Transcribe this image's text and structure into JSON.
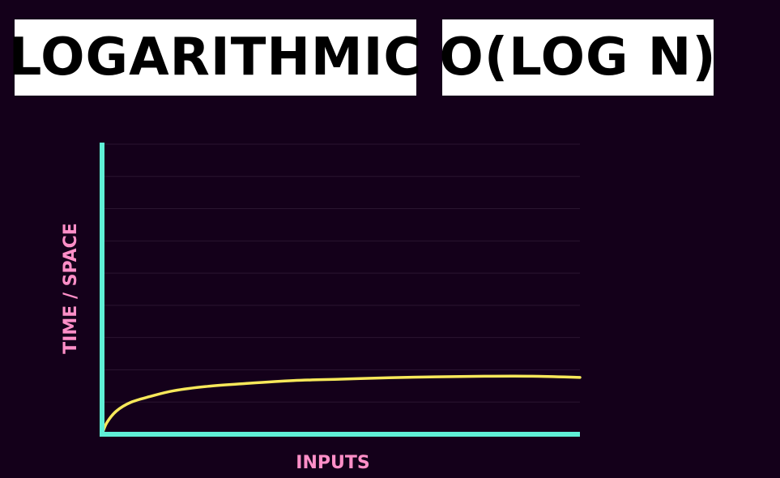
{
  "titles": {
    "left": "LOGARITHMIC",
    "right": "O(LOG N)"
  },
  "colors": {
    "background": "#14001a",
    "axis": "#5ff0d6",
    "curve": "#f7e85a",
    "label": "#ff8fc8",
    "grid": "#2a1530"
  },
  "chart_data": {
    "type": "line",
    "xlabel": "INPUTS",
    "ylabel": "TIME / SPACE",
    "grid": true,
    "xlim": [
      0,
      100
    ],
    "ylim": [
      0,
      100
    ],
    "series": [
      {
        "x": [
          0,
          1,
          3,
          6,
          10,
          15,
          22,
          30,
          40,
          50,
          60,
          70,
          80,
          90,
          100
        ],
        "values": [
          0,
          4,
          8,
          11,
          13,
          15,
          16.5,
          17.5,
          18.5,
          19,
          19.5,
          19.8,
          20,
          20,
          19.6
        ]
      }
    ]
  }
}
